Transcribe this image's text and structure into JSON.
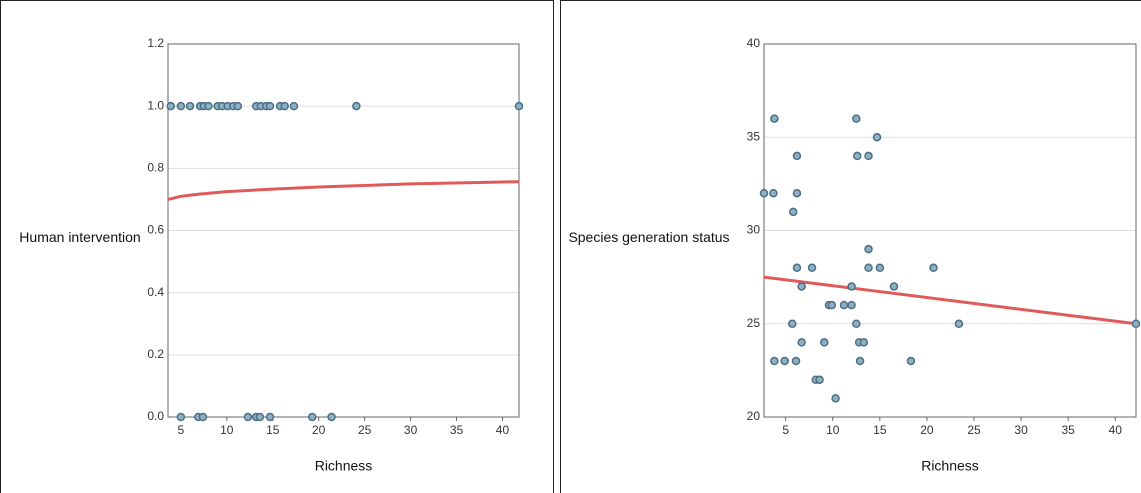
{
  "chart_data": [
    {
      "type": "scatter",
      "x_label": "Richness",
      "y_label": "Human intervention",
      "point_color": "#8fb0c0",
      "point_stroke": "#4a6f86",
      "grid": true,
      "xlim": [
        3.6,
        41.8
      ],
      "ylim": [
        0,
        1.2
      ],
      "xticks": [
        5,
        10,
        15,
        20,
        25,
        30,
        35,
        40
      ],
      "yticks": [
        {
          "value": 0,
          "label": "0.0"
        },
        0.2,
        0.4,
        0.6,
        0.8,
        {
          "value": 1,
          "label": "1.0"
        },
        1.2
      ],
      "x": [
        3.9,
        5.0,
        6.0,
        7.1,
        7.5,
        8.0,
        9.0,
        9.5,
        10.1,
        10.7,
        11.2,
        13.2,
        13.7,
        14.3,
        14.7,
        15.8,
        16.3,
        17.3,
        24.1,
        41.8,
        5.0,
        6.9,
        7.4,
        12.3,
        13.2,
        13.6,
        14.7,
        19.3,
        21.4
      ],
      "y": [
        1,
        1,
        1,
        1,
        1,
        1,
        1,
        1,
        1,
        1,
        1,
        1,
        1,
        1,
        1,
        1,
        1,
        1,
        1,
        1,
        0,
        0,
        0,
        0,
        0,
        0,
        0,
        0,
        0
      ],
      "trend": {
        "color": "#e05a5a",
        "x": [
          3.6,
          5,
          7,
          10,
          15,
          20,
          30,
          41.8
        ],
        "y": [
          0.7,
          0.71,
          0.717,
          0.725,
          0.733,
          0.74,
          0.75,
          0.757
        ]
      }
    },
    {
      "type": "scatter",
      "x_label": "Richness",
      "y_label": "Species generation status",
      "point_color": "#8fb0c0",
      "point_stroke": "#4a6f86",
      "grid": true,
      "xlim": [
        2.7,
        42.2
      ],
      "ylim": [
        20,
        40
      ],
      "xticks": [
        5,
        10,
        15,
        20,
        25,
        30,
        35,
        40
      ],
      "yticks": [
        20,
        25,
        30,
        35,
        40
      ],
      "x": [
        2.7,
        3.7,
        3.8,
        3.8,
        4.9,
        5.7,
        5.8,
        6.1,
        6.2,
        6.2,
        6.2,
        6.7,
        6.7,
        7.8,
        8.2,
        8.6,
        9.1,
        9.6,
        9.9,
        10.3,
        11.2,
        12.0,
        12.0,
        12.5,
        12.5,
        12.6,
        12.8,
        12.9,
        13.3,
        13.8,
        13.8,
        13.8,
        14.7,
        15.0,
        16.5,
        18.3,
        20.7,
        23.4,
        42.2
      ],
      "y": [
        32,
        32,
        36,
        23,
        23,
        25,
        31,
        23,
        34,
        32,
        28,
        27,
        24,
        28,
        22,
        22,
        24,
        26,
        26,
        21,
        26,
        26,
        27,
        36,
        25,
        34,
        24,
        23,
        24,
        34,
        29,
        28,
        35,
        28,
        27,
        23,
        28,
        25,
        25
      ],
      "trend": {
        "color": "#e05a5a",
        "x": [
          2.7,
          42.2
        ],
        "y": [
          27.5,
          25
        ]
      }
    }
  ]
}
